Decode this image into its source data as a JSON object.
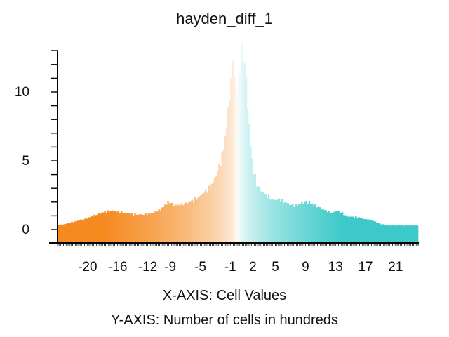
{
  "chart_data": {
    "type": "bar",
    "title": "hayden_diff_1",
    "xlabel": "X-AXIS: Cell Values",
    "ylabel": "Y-AXIS: Number of cells in hundreds",
    "xlim": [
      -24,
      24
    ],
    "ylim": [
      0,
      13
    ],
    "x_ticks": [
      -20,
      -16,
      -12,
      -9,
      -5,
      -1,
      2,
      5,
      9,
      13,
      17,
      21
    ],
    "y_ticks": [
      0,
      5,
      10
    ],
    "grid": false,
    "legend": "none",
    "colors": {
      "negative": "#f58a1f",
      "zero": "#ffffff",
      "positive": "#3dc9c9"
    },
    "bin_width": 0.2,
    "profile": {
      "x": [
        -24,
        -23.5,
        -23,
        -22.5,
        -22,
        -21.5,
        -21,
        -20.5,
        -20,
        -19.5,
        -19,
        -18.5,
        -18,
        -17.5,
        -17,
        -16.5,
        -16,
        -15.5,
        -15,
        -14.5,
        -14,
        -13.5,
        -13,
        -12.5,
        -12,
        -11.5,
        -11,
        -10.5,
        -10,
        -9.5,
        -9,
        -8.5,
        -8,
        -7.5,
        -7,
        -6.5,
        -6,
        -5.5,
        -5,
        -4.5,
        -4,
        -3.5,
        -3,
        -2.5,
        -2,
        -1.8,
        -1.5,
        -1.2,
        -1.0,
        -0.8,
        -0.6,
        -0.4,
        -0.2,
        0,
        0.2,
        0.4,
        0.6,
        0.8,
        1.0,
        1.2,
        1.5,
        1.8,
        2,
        2.5,
        3,
        3.5,
        4,
        4.5,
        5,
        5.5,
        6,
        6.5,
        7,
        7.5,
        8,
        8.5,
        9,
        9.5,
        10,
        10.5,
        11,
        11.5,
        12,
        12.5,
        13,
        13.5,
        14,
        14.5,
        15,
        15.5,
        16,
        16.5,
        17,
        17.5,
        18,
        18.5,
        19,
        19.5,
        20,
        20.5,
        21,
        21.5,
        22,
        22.5,
        23,
        23.5,
        24
      ],
      "y": [
        0.3,
        0.35,
        0.4,
        0.5,
        0.55,
        0.6,
        0.7,
        0.75,
        0.85,
        0.95,
        1.05,
        1.15,
        1.25,
        1.3,
        1.35,
        1.35,
        1.3,
        1.25,
        1.2,
        1.2,
        1.1,
        1.1,
        1.1,
        1.1,
        1.15,
        1.2,
        1.3,
        1.4,
        1.6,
        1.9,
        2.0,
        1.8,
        1.75,
        1.8,
        1.9,
        2.0,
        2.1,
        2.25,
        2.45,
        2.7,
        2.95,
        3.3,
        3.8,
        4.6,
        5.5,
        6.4,
        7.5,
        9.0,
        10.5,
        11.5,
        12.0,
        11.5,
        10.0,
        10.5,
        11.5,
        12.5,
        13.0,
        12.6,
        11.5,
        10.0,
        7.5,
        5.5,
        4.5,
        3.3,
        2.9,
        2.6,
        2.4,
        2.2,
        2.15,
        2.2,
        2.05,
        1.95,
        1.8,
        1.75,
        1.8,
        1.9,
        2.0,
        1.95,
        1.85,
        1.7,
        1.55,
        1.45,
        1.3,
        1.2,
        1.35,
        1.35,
        1.15,
        0.95,
        0.95,
        0.9,
        0.9,
        0.8,
        0.75,
        0.7,
        0.65,
        0.5,
        0.4,
        0.35,
        0.3,
        0.3,
        0.3,
        0.3,
        0.3,
        0.3,
        0.3,
        0.3,
        0.3
      ]
    }
  }
}
